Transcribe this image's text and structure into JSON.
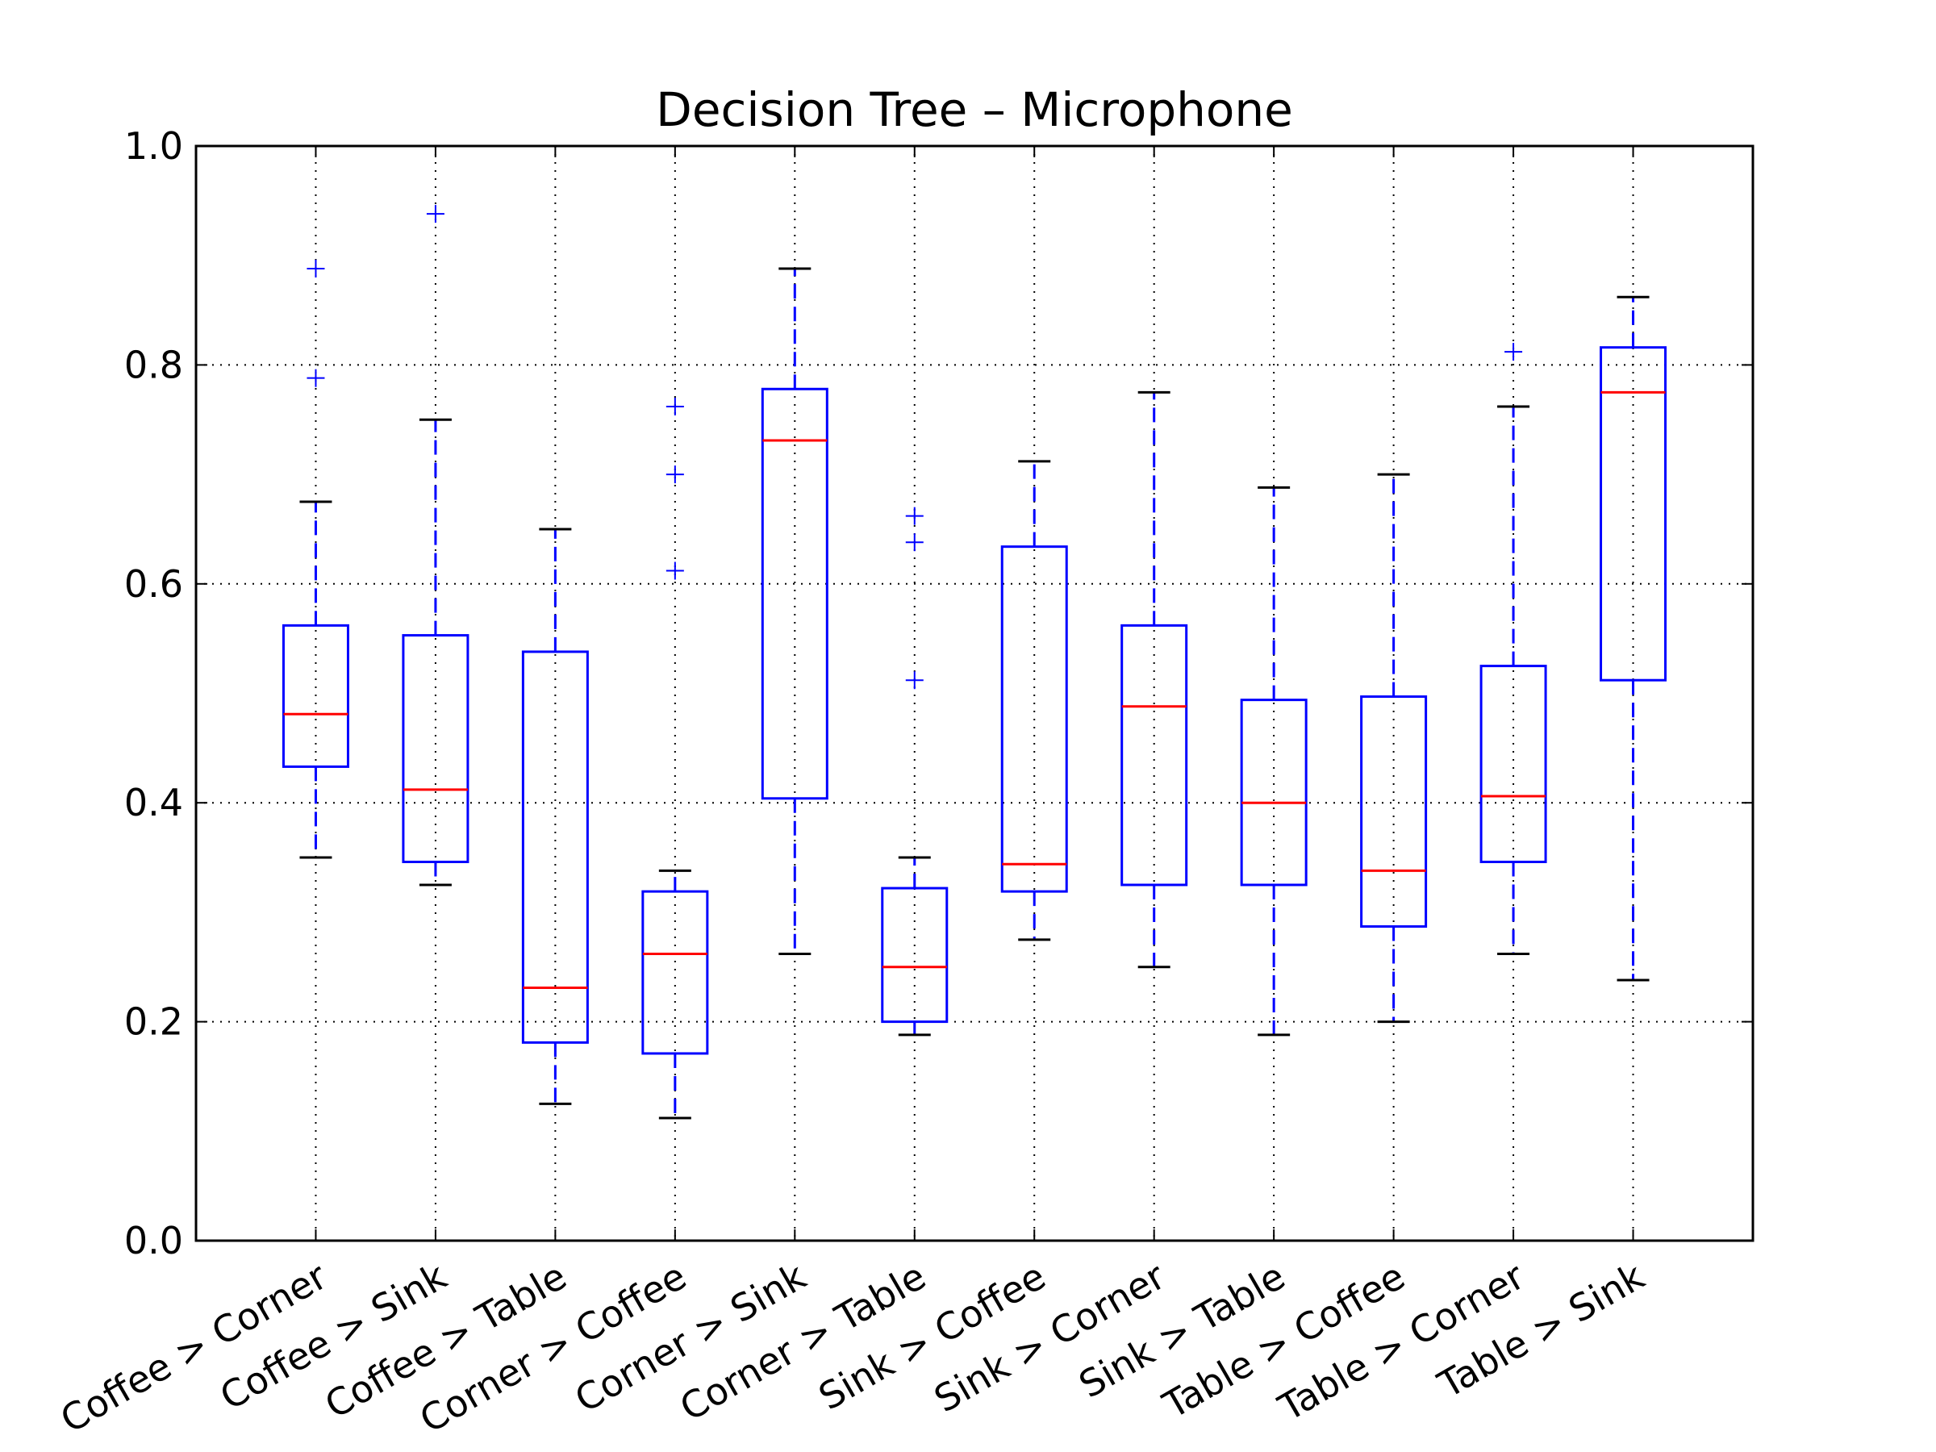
{
  "chart_data": {
    "type": "box",
    "title": "Decision Tree – Microphone",
    "xlabel": "",
    "ylabel": "",
    "ylim": [
      0,
      1
    ],
    "yticks": [
      "0.0",
      "0.2",
      "0.4",
      "0.6",
      "0.8",
      "1.0"
    ],
    "grid": true,
    "categories": [
      "Coffee > Corner",
      "Coffee > Sink",
      "Coffee > Table",
      "Corner > Coffee",
      "Corner > Sink",
      "Corner > Table",
      "Sink > Coffee",
      "Sink > Corner",
      "Sink > Table",
      "Table > Coffee",
      "Table > Corner",
      "Table > Sink"
    ],
    "boxes": [
      {
        "whisker_low": 0.35,
        "q1": 0.433,
        "median": 0.481,
        "q3": 0.562,
        "whisker_high": 0.675,
        "outliers": [
          0.788,
          0.888
        ]
      },
      {
        "whisker_low": 0.325,
        "q1": 0.346,
        "median": 0.412,
        "q3": 0.553,
        "whisker_high": 0.75,
        "outliers": [
          0.938
        ]
      },
      {
        "whisker_low": 0.125,
        "q1": 0.181,
        "median": 0.231,
        "q3": 0.538,
        "whisker_high": 0.65,
        "outliers": []
      },
      {
        "whisker_low": 0.112,
        "q1": 0.171,
        "median": 0.262,
        "q3": 0.319,
        "whisker_high": 0.338,
        "outliers": [
          0.612,
          0.7,
          0.762
        ]
      },
      {
        "whisker_low": 0.262,
        "q1": 0.404,
        "median": 0.731,
        "q3": 0.778,
        "whisker_high": 0.888,
        "outliers": []
      },
      {
        "whisker_low": 0.188,
        "q1": 0.2,
        "median": 0.25,
        "q3": 0.322,
        "whisker_high": 0.35,
        "outliers": [
          0.512,
          0.638,
          0.662
        ]
      },
      {
        "whisker_low": 0.275,
        "q1": 0.319,
        "median": 0.344,
        "q3": 0.634,
        "whisker_high": 0.712,
        "outliers": []
      },
      {
        "whisker_low": 0.25,
        "q1": 0.325,
        "median": 0.488,
        "q3": 0.562,
        "whisker_high": 0.775,
        "outliers": []
      },
      {
        "whisker_low": 0.188,
        "q1": 0.325,
        "median": 0.4,
        "q3": 0.494,
        "whisker_high": 0.688,
        "outliers": []
      },
      {
        "whisker_low": 0.2,
        "q1": 0.287,
        "median": 0.338,
        "q3": 0.497,
        "whisker_high": 0.7,
        "outliers": []
      },
      {
        "whisker_low": 0.262,
        "q1": 0.346,
        "median": 0.406,
        "q3": 0.525,
        "whisker_high": 0.762,
        "outliers": [
          0.812
        ]
      },
      {
        "whisker_low": 0.238,
        "q1": 0.512,
        "median": 0.775,
        "q3": 0.816,
        "whisker_high": 0.862,
        "outliers": []
      }
    ],
    "colors": {
      "box": "#0000ff",
      "median": "#ff0000",
      "whisker": "#0000ff",
      "cap": "#000000",
      "outlier": "#0000ff",
      "grid": "#000000",
      "axes": "#000000"
    }
  }
}
